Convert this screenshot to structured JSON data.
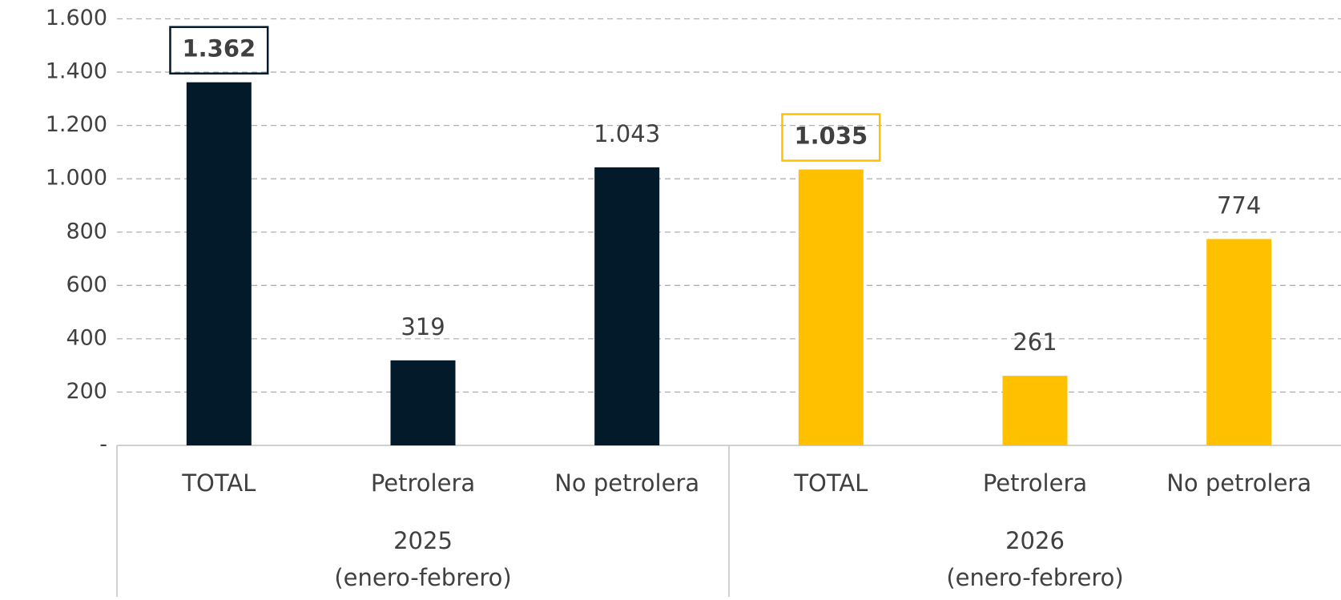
{
  "chart_data": {
    "type": "bar",
    "ylim": [
      0,
      1600
    ],
    "yticks": [
      {
        "value": 0,
        "label": "-"
      },
      200,
      400,
      600,
      800,
      {
        "value": 1000,
        "label": "1.000"
      },
      {
        "value": 1200,
        "label": "1.200"
      },
      {
        "value": 1400,
        "label": "1.400"
      },
      {
        "value": 1600,
        "label": "1.600"
      }
    ],
    "grid": true,
    "groups": [
      {
        "label": [
          "2025",
          "(enero-febrero)"
        ],
        "color": "#031a2b",
        "categories": [
          "TOTAL",
          "Petrolera",
          "No petrolera"
        ],
        "values": [
          1362,
          319,
          1043
        ],
        "value_labels": [
          "1.362",
          "319",
          "1.043"
        ]
      },
      {
        "label": [
          "2026",
          "(enero-febrero)"
        ],
        "color": "#ffc000",
        "categories": [
          "TOTAL",
          "Petrolera",
          "No petrolera"
        ],
        "values": [
          1035,
          261,
          774
        ],
        "value_labels": [
          "1.035",
          "261",
          "774"
        ]
      }
    ]
  }
}
